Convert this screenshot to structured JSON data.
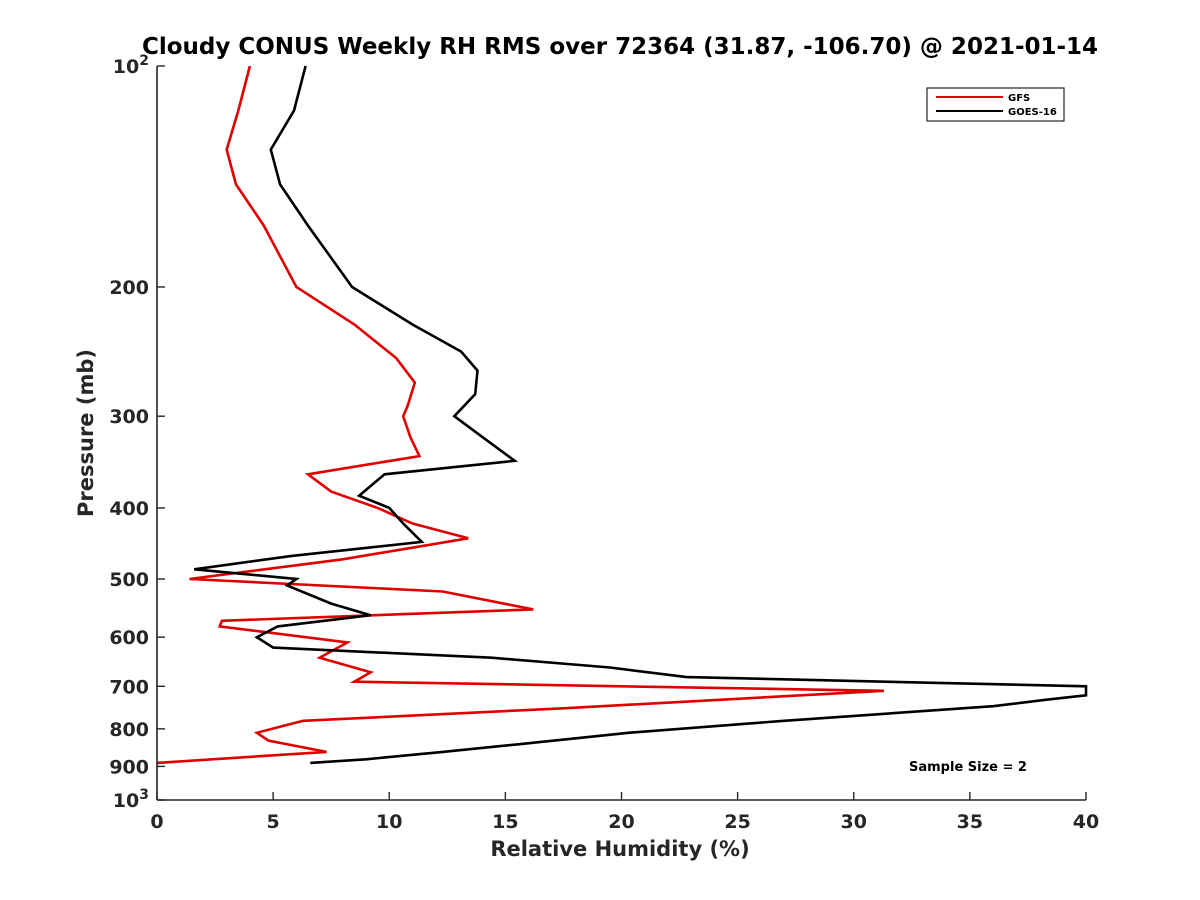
{
  "chart_data": {
    "type": "line",
    "title": "Cloudy CONUS Weekly RH RMS over 72364 (31.87, -106.70) @ 2021-01-14",
    "xlabel": "Relative Humidity (%)",
    "ylabel": "Pressure (mb)",
    "xlim": [
      0,
      40
    ],
    "ylim": [
      100,
      1000
    ],
    "y_scale": "log",
    "y_inverted": true,
    "x_ticks": [
      "0",
      "5",
      "10",
      "15",
      "20",
      "25",
      "30",
      "35",
      "40"
    ],
    "y_ticks": [
      {
        "value": 100,
        "label": "10",
        "sup": "2"
      },
      {
        "value": 200,
        "label": "200",
        "sup": ""
      },
      {
        "value": 300,
        "label": "300",
        "sup": ""
      },
      {
        "value": 400,
        "label": "400",
        "sup": ""
      },
      {
        "value": 500,
        "label": "500",
        "sup": ""
      },
      {
        "value": 600,
        "label": "600",
        "sup": ""
      },
      {
        "value": 700,
        "label": "700",
        "sup": ""
      },
      {
        "value": 800,
        "label": "800",
        "sup": ""
      },
      {
        "value": 900,
        "label": "900",
        "sup": ""
      },
      {
        "value": 1000,
        "label": "10",
        "sup": "3"
      }
    ],
    "legend_position": "top-right",
    "annotation": "Sample Size = 2",
    "series": [
      {
        "name": "GFS",
        "color": "#e00000",
        "points": [
          [
            4.0,
            100
          ],
          [
            3.5,
            115
          ],
          [
            3.0,
            130
          ],
          [
            3.4,
            145
          ],
          [
            4.6,
            165
          ],
          [
            6.0,
            200
          ],
          [
            8.5,
            225
          ],
          [
            10.3,
            250
          ],
          [
            11.1,
            270
          ],
          [
            10.8,
            290
          ],
          [
            10.6,
            300
          ],
          [
            10.9,
            320
          ],
          [
            11.3,
            340
          ],
          [
            6.5,
            360
          ],
          [
            7.5,
            380
          ],
          [
            9.5,
            400
          ],
          [
            11.0,
            420
          ],
          [
            13.4,
            440
          ],
          [
            8.0,
            470
          ],
          [
            1.4,
            500
          ],
          [
            12.3,
            520
          ],
          [
            16.2,
            550
          ],
          [
            2.8,
            570
          ],
          [
            2.7,
            580
          ],
          [
            8.2,
            610
          ],
          [
            7.0,
            640
          ],
          [
            9.2,
            670
          ],
          [
            8.5,
            690
          ],
          [
            31.3,
            710
          ],
          [
            17.5,
            750
          ],
          [
            6.3,
            780
          ],
          [
            5.6,
            790
          ],
          [
            4.3,
            810
          ],
          [
            4.8,
            830
          ],
          [
            7.3,
            860
          ],
          [
            0,
            890
          ]
        ]
      },
      {
        "name": "GOES-16",
        "color": "#000000",
        "points": [
          [
            6.4,
            100
          ],
          [
            5.9,
            115
          ],
          [
            4.9,
            130
          ],
          [
            5.3,
            145
          ],
          [
            6.5,
            165
          ],
          [
            8.4,
            200
          ],
          [
            11.0,
            225
          ],
          [
            13.1,
            245
          ],
          [
            13.8,
            260
          ],
          [
            13.7,
            280
          ],
          [
            12.8,
            300
          ],
          [
            14.0,
            320
          ],
          [
            15.4,
            345
          ],
          [
            9.8,
            360
          ],
          [
            8.7,
            385
          ],
          [
            10.0,
            400
          ],
          [
            10.6,
            420
          ],
          [
            11.4,
            445
          ],
          [
            5.8,
            465
          ],
          [
            1.6,
            485
          ],
          [
            6.0,
            500
          ],
          [
            5.6,
            510
          ],
          [
            7.5,
            540
          ],
          [
            9.2,
            560
          ],
          [
            5.2,
            580
          ],
          [
            4.3,
            600
          ],
          [
            5.0,
            620
          ],
          [
            14.4,
            640
          ],
          [
            19.5,
            660
          ],
          [
            22.8,
            680
          ],
          [
            40.0,
            700
          ],
          [
            40.0,
            720
          ],
          [
            38.3,
            730
          ],
          [
            36.0,
            745
          ],
          [
            27.0,
            780
          ],
          [
            20.3,
            810
          ],
          [
            15.5,
            840
          ],
          [
            12.3,
            860
          ],
          [
            9.0,
            880
          ],
          [
            6.6,
            890
          ]
        ]
      }
    ]
  }
}
